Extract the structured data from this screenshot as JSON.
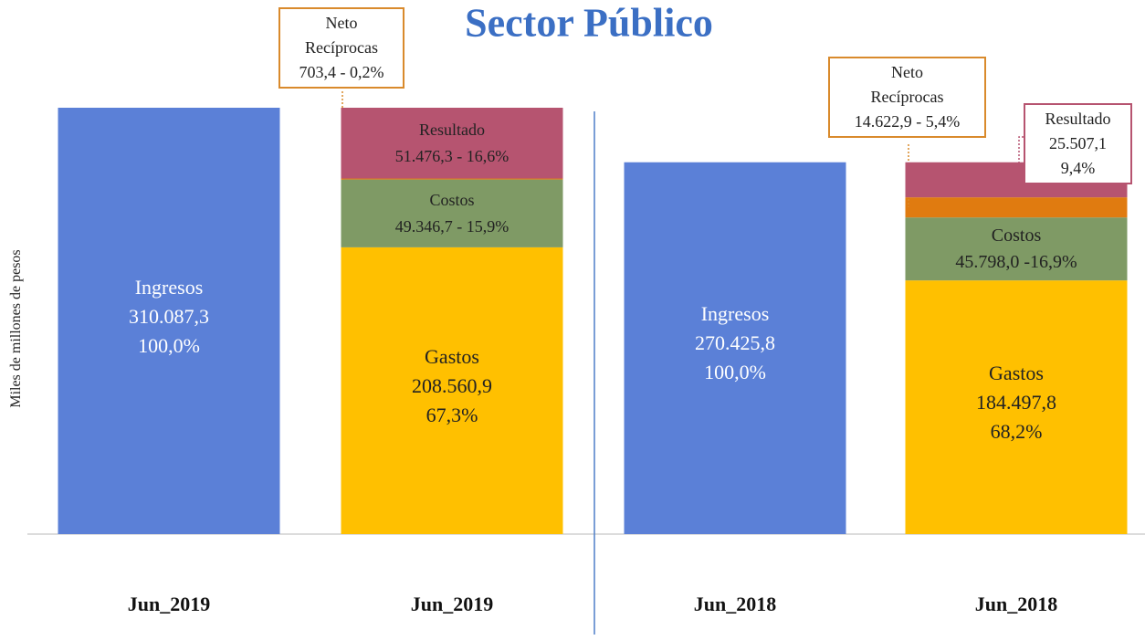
{
  "chart_data": {
    "type": "stacked_bar",
    "title": "Sector Público",
    "y_label": "Miles de millones  de pesos",
    "categories": [
      "Jun_2019",
      "Jun_2019",
      "Jun_2018",
      "Jun_2018"
    ],
    "series": [
      {
        "name": "Ingresos",
        "color": "#5b80d7",
        "values": [
          310087.3,
          null,
          270425.8,
          null
        ],
        "value_labels": [
          [
            "310.087,3",
            "100,0%"
          ],
          null,
          [
            "270.425,8",
            "100,0%"
          ],
          null
        ]
      },
      {
        "name": "Gastos",
        "color": "#ffc000",
        "values": [
          null,
          208560.9,
          null,
          184497.8
        ],
        "value_labels": [
          null,
          [
            "208.560,9",
            "67,3%"
          ],
          null,
          [
            "184.497,8",
            "68,2%"
          ]
        ]
      },
      {
        "name": "Costos",
        "color": "#7f9a65",
        "values": [
          null,
          49346.7,
          null,
          45798.0
        ],
        "value_labels": [
          null,
          [
            "49.346,7 - 15,9%"
          ],
          null,
          [
            "45.798,0 -16,9%"
          ]
        ]
      },
      {
        "name": "Neto Recíprocas",
        "color": "#e07b10",
        "values": [
          null,
          703.4,
          null,
          14622.9
        ],
        "value_labels": [
          null,
          [
            "703,4 - 0,2%"
          ],
          null,
          [
            "14.622,9 - 5,4%"
          ]
        ]
      },
      {
        "name": "Resultado",
        "color": "#b65470",
        "values": [
          null,
          51476.3,
          null,
          25507.1
        ],
        "value_labels": [
          null,
          [
            "51.476,3 - 16,6%"
          ],
          null,
          [
            "25.507,1",
            "9,4%"
          ]
        ]
      }
    ]
  }
}
